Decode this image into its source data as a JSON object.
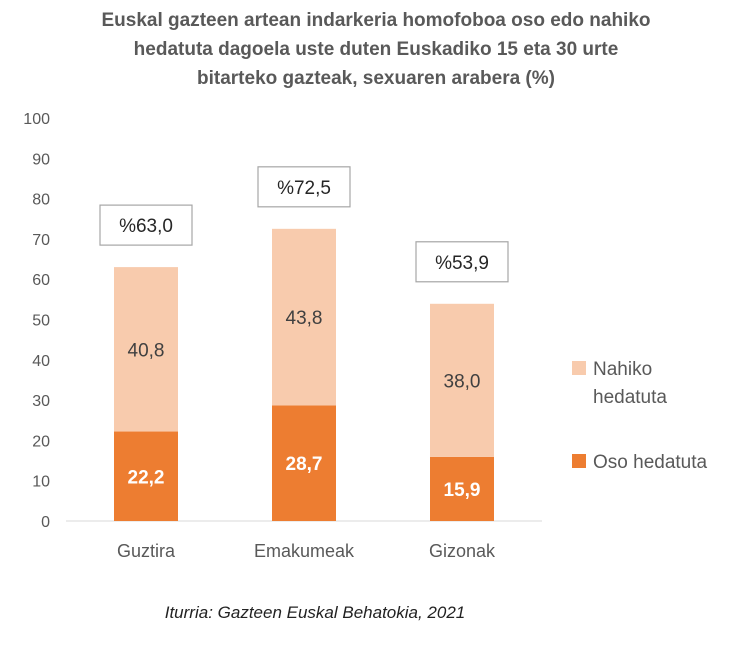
{
  "chart_data": {
    "type": "bar",
    "stacked": true,
    "title_lines": [
      "Euskal gazteen artean indarkeria homofoboa oso edo nahiko",
      "hedatuta dagoela uste duten Euskadiko  15 eta 30 urte",
      "bitarteko gazteak, sexuaren arabera  (%)"
    ],
    "categories": [
      "Guztira",
      "Emakumeak",
      "Gizonak"
    ],
    "series": [
      {
        "name": "Oso hedatuta",
        "values": [
          22.2,
          28.7,
          15.9
        ],
        "labels": [
          "22,2",
          "28,7",
          "15,9"
        ],
        "color": "#ED7D31"
      },
      {
        "name": "Nahiko hedatuta",
        "legend_lines": [
          "Nahiko",
          "hedatuta"
        ],
        "values": [
          40.8,
          43.8,
          38.0
        ],
        "labels": [
          "40,8",
          "43,8",
          "38,0"
        ],
        "color": "#F8CBAD"
      }
    ],
    "totals": [
      63.0,
      72.5,
      53.9
    ],
    "total_labels": [
      "%63,0",
      "%72,5",
      "%53,9"
    ],
    "y_ticks": [
      "0",
      "10",
      "20",
      "30",
      "40",
      "50",
      "60",
      "70",
      "80",
      "90",
      "100"
    ],
    "ylim": [
      0,
      100
    ],
    "grid": false,
    "legend_position": "right"
  },
  "source": "Iturria: Gazteen Euskal Behatokia, 2021"
}
